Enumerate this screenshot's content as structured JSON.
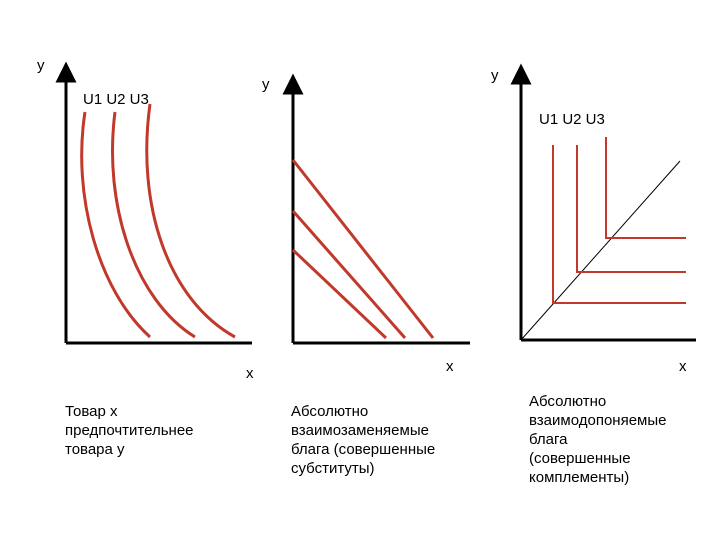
{
  "panels": [
    {
      "y_label": "y",
      "x_label": "x",
      "curve_labels": "U1  U2  U3",
      "caption": "Товар x\nпредпочтительнее\nтовара y"
    },
    {
      "y_label": "y",
      "x_label": "x",
      "caption": "Абсолютно\nвзаимозаменяемые\nблага (совершенные\nсубституты)"
    },
    {
      "y_label": "y",
      "x_label": "x",
      "curve_labels": "U1  U2  U3",
      "caption": "Абсолютно\nвзаимодопоняемые\nблага\n(совершенные\nкомплементы)"
    }
  ],
  "colors": {
    "curve": "#c0392b",
    "axis": "#000000"
  }
}
